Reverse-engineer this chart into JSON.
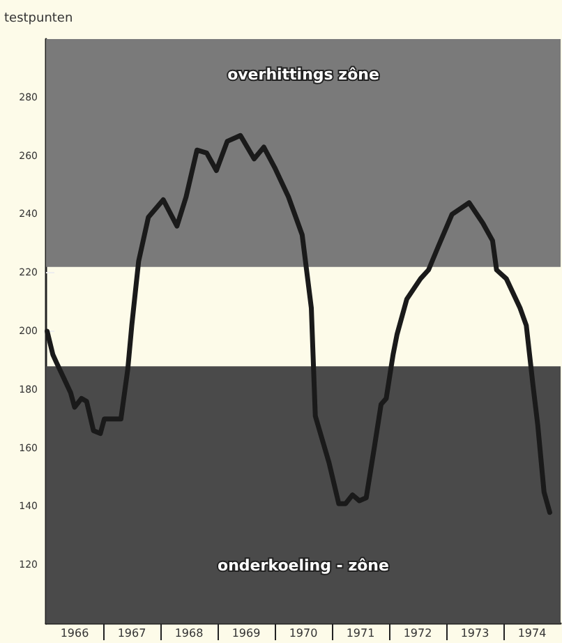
{
  "chart_data": {
    "type": "line",
    "ylabel": "testpunten",
    "x": [
      1966.02,
      1966.12,
      1966.19,
      1966.31,
      1966.43,
      1966.5,
      1966.62,
      1966.71,
      1966.83,
      1966.95,
      1967.02,
      1967.14,
      1967.31,
      1967.43,
      1967.5,
      1967.62,
      1967.79,
      1968.05,
      1968.29,
      1968.45,
      1968.64,
      1968.81,
      1968.98,
      1969.17,
      1969.4,
      1969.64,
      1969.81,
      1970.0,
      1970.24,
      1970.48,
      1970.64,
      1970.71,
      1970.95,
      1971.12,
      1971.24,
      1971.36,
      1971.48,
      1971.6,
      1971.74,
      1971.86,
      1971.95,
      1972.07,
      1972.14,
      1972.31,
      1972.55,
      1972.69,
      1972.86,
      1973.1,
      1973.4,
      1973.64,
      1973.81,
      1973.88,
      1974.05,
      1974.29,
      1974.4,
      1974.52,
      1974.6,
      1974.71,
      1974.81
    ],
    "series": [
      {
        "color": "#1a1a1a",
        "values": [
          200,
          192,
          189,
          184,
          179,
          174,
          177,
          176,
          166,
          165,
          170,
          170,
          170,
          187,
          202,
          224,
          239,
          245,
          236,
          246,
          262,
          261,
          255,
          265,
          267,
          259,
          263,
          256,
          246,
          233,
          208,
          171,
          155,
          141,
          141,
          144,
          142,
          143,
          160,
          175,
          177,
          192,
          199,
          211,
          218,
          221,
          229,
          240,
          244,
          237,
          231,
          221,
          218,
          208,
          202,
          181,
          168,
          145,
          138
        ]
      }
    ],
    "xlim": [
      1966,
      1975
    ],
    "xticks": [
      {
        "value": 1966.5,
        "label": "1966"
      },
      {
        "value": 1967,
        "label": null
      },
      {
        "value": 1967.5,
        "label": "1967"
      },
      {
        "value": 1968,
        "label": null
      },
      {
        "value": 1968.5,
        "label": "1968"
      },
      {
        "value": 1969,
        "label": null
      },
      {
        "value": 1969.5,
        "label": "1969"
      },
      {
        "value": 1970,
        "label": null
      },
      {
        "value": 1970.5,
        "label": "1970"
      },
      {
        "value": 1971,
        "label": null
      },
      {
        "value": 1971.5,
        "label": "1971"
      },
      {
        "value": 1972,
        "label": null
      },
      {
        "value": 1972.5,
        "label": "1972"
      },
      {
        "value": 1973,
        "label": null
      },
      {
        "value": 1973.5,
        "label": "1973"
      },
      {
        "value": 1974,
        "label": null
      },
      {
        "value": 1974.5,
        "label": "1974"
      }
    ],
    "ylim": [
      100,
      300
    ],
    "yticks": [
      120,
      140,
      160,
      180,
      200,
      220,
      240,
      260,
      280
    ],
    "bands": [
      {
        "axis": "y",
        "from": 222,
        "to": 300,
        "label": "overhittings zône",
        "color": "#7a7a7a"
      },
      {
        "axis": "y",
        "from": 100,
        "to": 188,
        "label": "onderkoeling - zône",
        "color": "#4a4a4a"
      }
    ],
    "grid": false,
    "marker": "none",
    "line_style": "solid"
  }
}
